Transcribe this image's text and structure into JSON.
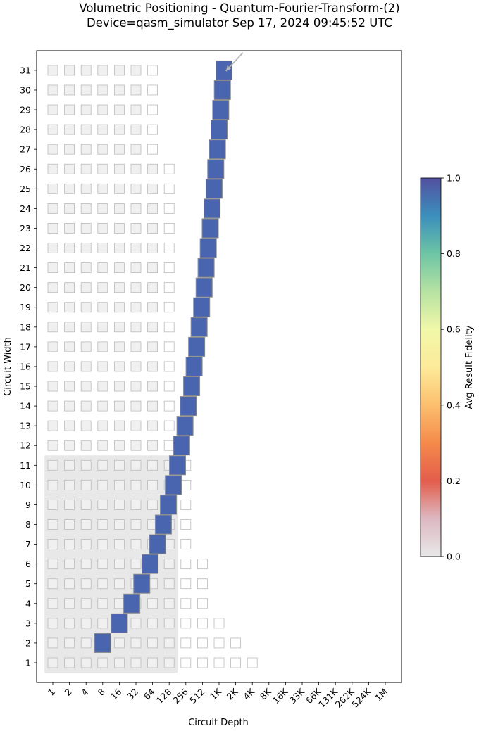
{
  "chart_data": {
    "type": "heatmap",
    "title": "Volumetric Positioning - Quantum-Fourier-Transform-(2)",
    "subtitle": "Device=qasm_simulator  Sep 17, 2024 09:45:52 UTC",
    "xlabel": "Circuit Depth",
    "ylabel": "Circuit Width",
    "x_tick_labels": [
      "1",
      "2",
      "4",
      "8",
      "16",
      "32",
      "64",
      "128",
      "256",
      "512",
      "1K",
      "2K",
      "4K",
      "8K",
      "16K",
      "33K",
      "66K",
      "131K",
      "262K",
      "524K",
      "1M"
    ],
    "y_tick_labels": [
      "1",
      "2",
      "3",
      "4",
      "5",
      "6",
      "7",
      "8",
      "9",
      "10",
      "11",
      "12",
      "13",
      "14",
      "15",
      "16",
      "17",
      "18",
      "19",
      "20",
      "21",
      "22",
      "23",
      "24",
      "25",
      "26",
      "27",
      "28",
      "29",
      "30",
      "31"
    ],
    "colorbar": {
      "label": "Avg Result Fidelity",
      "ticks": [
        "0.0",
        "0.2",
        "0.4",
        "0.6",
        "0.8",
        "1.0"
      ],
      "range": [
        0,
        1
      ]
    },
    "qv_region": {
      "max_width": 11,
      "max_depth_log2": 7.5
    },
    "reference_grid": [
      {
        "width": 1,
        "max_depth_log2": 12
      },
      {
        "width": 2,
        "max_depth_log2": 11
      },
      {
        "width": 3,
        "max_depth_log2": 10
      },
      {
        "width": 4,
        "max_depth_log2": 9
      },
      {
        "width": 5,
        "max_depth_log2": 9
      },
      {
        "width": 6,
        "max_depth_log2": 9
      },
      {
        "width": 7,
        "max_depth_log2": 8
      },
      {
        "width": 8,
        "max_depth_log2": 8
      },
      {
        "width": 9,
        "max_depth_log2": 8
      },
      {
        "width": 10,
        "max_depth_log2": 8
      },
      {
        "width": 11,
        "max_depth_log2": 8
      },
      {
        "width": 12,
        "max_depth_log2": 7
      },
      {
        "width": 13,
        "max_depth_log2": 7
      },
      {
        "width": 14,
        "max_depth_log2": 7
      },
      {
        "width": 15,
        "max_depth_log2": 7
      },
      {
        "width": 16,
        "max_depth_log2": 7
      },
      {
        "width": 17,
        "max_depth_log2": 7
      },
      {
        "width": 18,
        "max_depth_log2": 7
      },
      {
        "width": 19,
        "max_depth_log2": 7
      },
      {
        "width": 20,
        "max_depth_log2": 7
      },
      {
        "width": 21,
        "max_depth_log2": 7
      },
      {
        "width": 22,
        "max_depth_log2": 7
      },
      {
        "width": 23,
        "max_depth_log2": 7
      },
      {
        "width": 24,
        "max_depth_log2": 7
      },
      {
        "width": 25,
        "max_depth_log2": 7
      },
      {
        "width": 26,
        "max_depth_log2": 7
      },
      {
        "width": 27,
        "max_depth_log2": 6
      },
      {
        "width": 28,
        "max_depth_log2": 6
      },
      {
        "width": 29,
        "max_depth_log2": 6
      },
      {
        "width": 30,
        "max_depth_log2": 6
      },
      {
        "width": 31,
        "max_depth_log2": 6
      }
    ],
    "points": [
      {
        "width": 2,
        "depth_log2": 3.0,
        "fidelity": 1.0
      },
      {
        "width": 3,
        "depth_log2": 4.0,
        "fidelity": 1.0
      },
      {
        "width": 4,
        "depth_log2": 4.75,
        "fidelity": 1.0
      },
      {
        "width": 5,
        "depth_log2": 5.35,
        "fidelity": 1.0
      },
      {
        "width": 6,
        "depth_log2": 5.85,
        "fidelity": 1.0
      },
      {
        "width": 7,
        "depth_log2": 6.3,
        "fidelity": 1.0
      },
      {
        "width": 8,
        "depth_log2": 6.65,
        "fidelity": 1.0
      },
      {
        "width": 9,
        "depth_log2": 6.95,
        "fidelity": 1.0
      },
      {
        "width": 10,
        "depth_log2": 7.25,
        "fidelity": 1.0
      },
      {
        "width": 11,
        "depth_log2": 7.5,
        "fidelity": 1.0
      },
      {
        "width": 12,
        "depth_log2": 7.75,
        "fidelity": 1.0
      },
      {
        "width": 13,
        "depth_log2": 7.95,
        "fidelity": 1.0
      },
      {
        "width": 14,
        "depth_log2": 8.15,
        "fidelity": 1.0
      },
      {
        "width": 15,
        "depth_log2": 8.35,
        "fidelity": 1.0
      },
      {
        "width": 16,
        "depth_log2": 8.5,
        "fidelity": 1.0
      },
      {
        "width": 17,
        "depth_log2": 8.65,
        "fidelity": 1.0
      },
      {
        "width": 18,
        "depth_log2": 8.8,
        "fidelity": 1.0
      },
      {
        "width": 19,
        "depth_log2": 8.95,
        "fidelity": 1.0
      },
      {
        "width": 20,
        "depth_log2": 9.1,
        "fidelity": 1.0
      },
      {
        "width": 21,
        "depth_log2": 9.22,
        "fidelity": 1.0
      },
      {
        "width": 22,
        "depth_log2": 9.35,
        "fidelity": 1.0
      },
      {
        "width": 23,
        "depth_log2": 9.47,
        "fidelity": 1.0
      },
      {
        "width": 24,
        "depth_log2": 9.58,
        "fidelity": 1.0
      },
      {
        "width": 25,
        "depth_log2": 9.7,
        "fidelity": 1.0
      },
      {
        "width": 26,
        "depth_log2": 9.8,
        "fidelity": 1.0
      },
      {
        "width": 27,
        "depth_log2": 9.9,
        "fidelity": 1.0
      },
      {
        "width": 28,
        "depth_log2": 10.0,
        "fidelity": 1.0
      },
      {
        "width": 29,
        "depth_log2": 10.1,
        "fidelity": 1.0
      },
      {
        "width": 30,
        "depth_log2": 10.2,
        "fidelity": 1.0
      },
      {
        "width": 31,
        "depth_log2": 10.3,
        "fidelity": 1.0
      }
    ],
    "annotation": {
      "type": "arrow",
      "points_to": {
        "width": 31,
        "depth_log2": 10.5
      }
    },
    "colors": {
      "point_fill": "#4a65b0",
      "point_edge": "#8a8a8a",
      "qv_region": "#e8e8e8",
      "grid_fill": "#f0f0f0",
      "grid_edge": "#bbbbbb"
    }
  }
}
